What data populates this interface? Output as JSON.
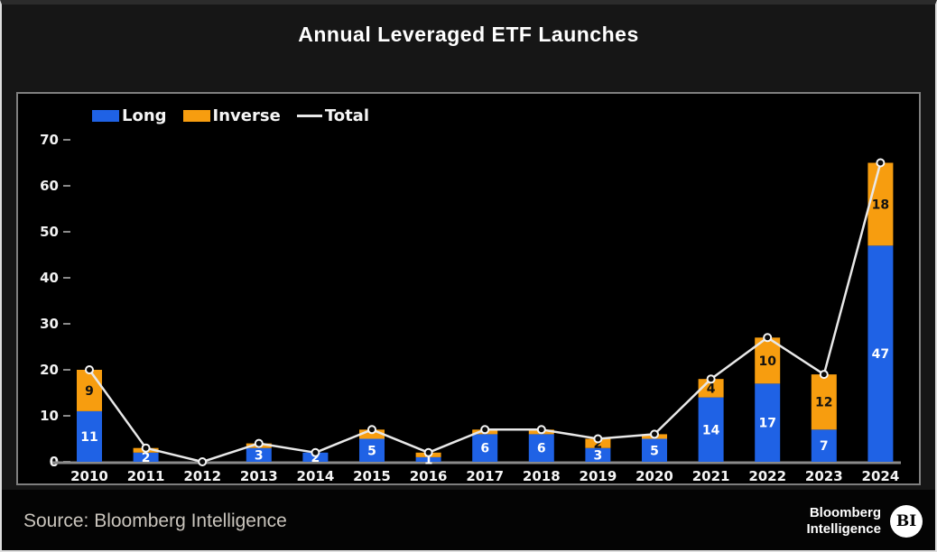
{
  "window": {
    "title": "Annual Leveraged ETF Launches"
  },
  "legend": {
    "items": [
      {
        "label": "Long",
        "color": "#1f62e5",
        "style": "swatch"
      },
      {
        "label": "Inverse",
        "color": "#f79d0f",
        "style": "swatch"
      },
      {
        "label": "Total",
        "color": "#e8e8e8",
        "style": "line"
      }
    ]
  },
  "chart_data": {
    "type": "bar",
    "stacked": true,
    "title": "Annual Leveraged ETF Launches",
    "categories": [
      "2010",
      "2011",
      "2012",
      "2013",
      "2014",
      "2015",
      "2016",
      "2017",
      "2018",
      "2019",
      "2020",
      "2021",
      "2022",
      "2023",
      "2024"
    ],
    "series": [
      {
        "name": "Long",
        "color": "#1f62e5",
        "label_color": "#ffffff",
        "values": [
          11,
          2,
          0,
          3,
          2,
          5,
          1,
          6,
          6,
          3,
          5,
          14,
          17,
          7,
          47
        ],
        "labels_shown": [
          true,
          true,
          false,
          true,
          true,
          true,
          true,
          true,
          true,
          true,
          true,
          true,
          true,
          true,
          true
        ]
      },
      {
        "name": "Inverse",
        "color": "#f79d0f",
        "label_color": "#111111",
        "values": [
          9,
          1,
          0,
          1,
          0,
          2,
          1,
          1,
          1,
          2,
          1,
          4,
          10,
          12,
          18
        ],
        "labels_shown": [
          true,
          false,
          false,
          false,
          false,
          false,
          false,
          false,
          false,
          true,
          false,
          true,
          true,
          true,
          true
        ]
      }
    ],
    "line_series": {
      "name": "Total",
      "color": "#e8e8e8",
      "values": [
        20,
        3,
        0,
        4,
        2,
        7,
        2,
        7,
        7,
        5,
        6,
        18,
        27,
        19,
        65
      ]
    },
    "ylim": [
      0,
      70
    ],
    "yticks": [
      0,
      10,
      20,
      30,
      40,
      50,
      60,
      70
    ],
    "grid": false,
    "legend_position": "top-left",
    "axis_color": "#8a8a8a",
    "tick_label_color": "#f2f2f2",
    "xlabel": "",
    "ylabel": ""
  },
  "footer": {
    "source": "Source: Bloomberg Intelligence",
    "brand": {
      "line1": "Bloomberg",
      "line2": "Intelligence",
      "badge": "BI"
    }
  }
}
